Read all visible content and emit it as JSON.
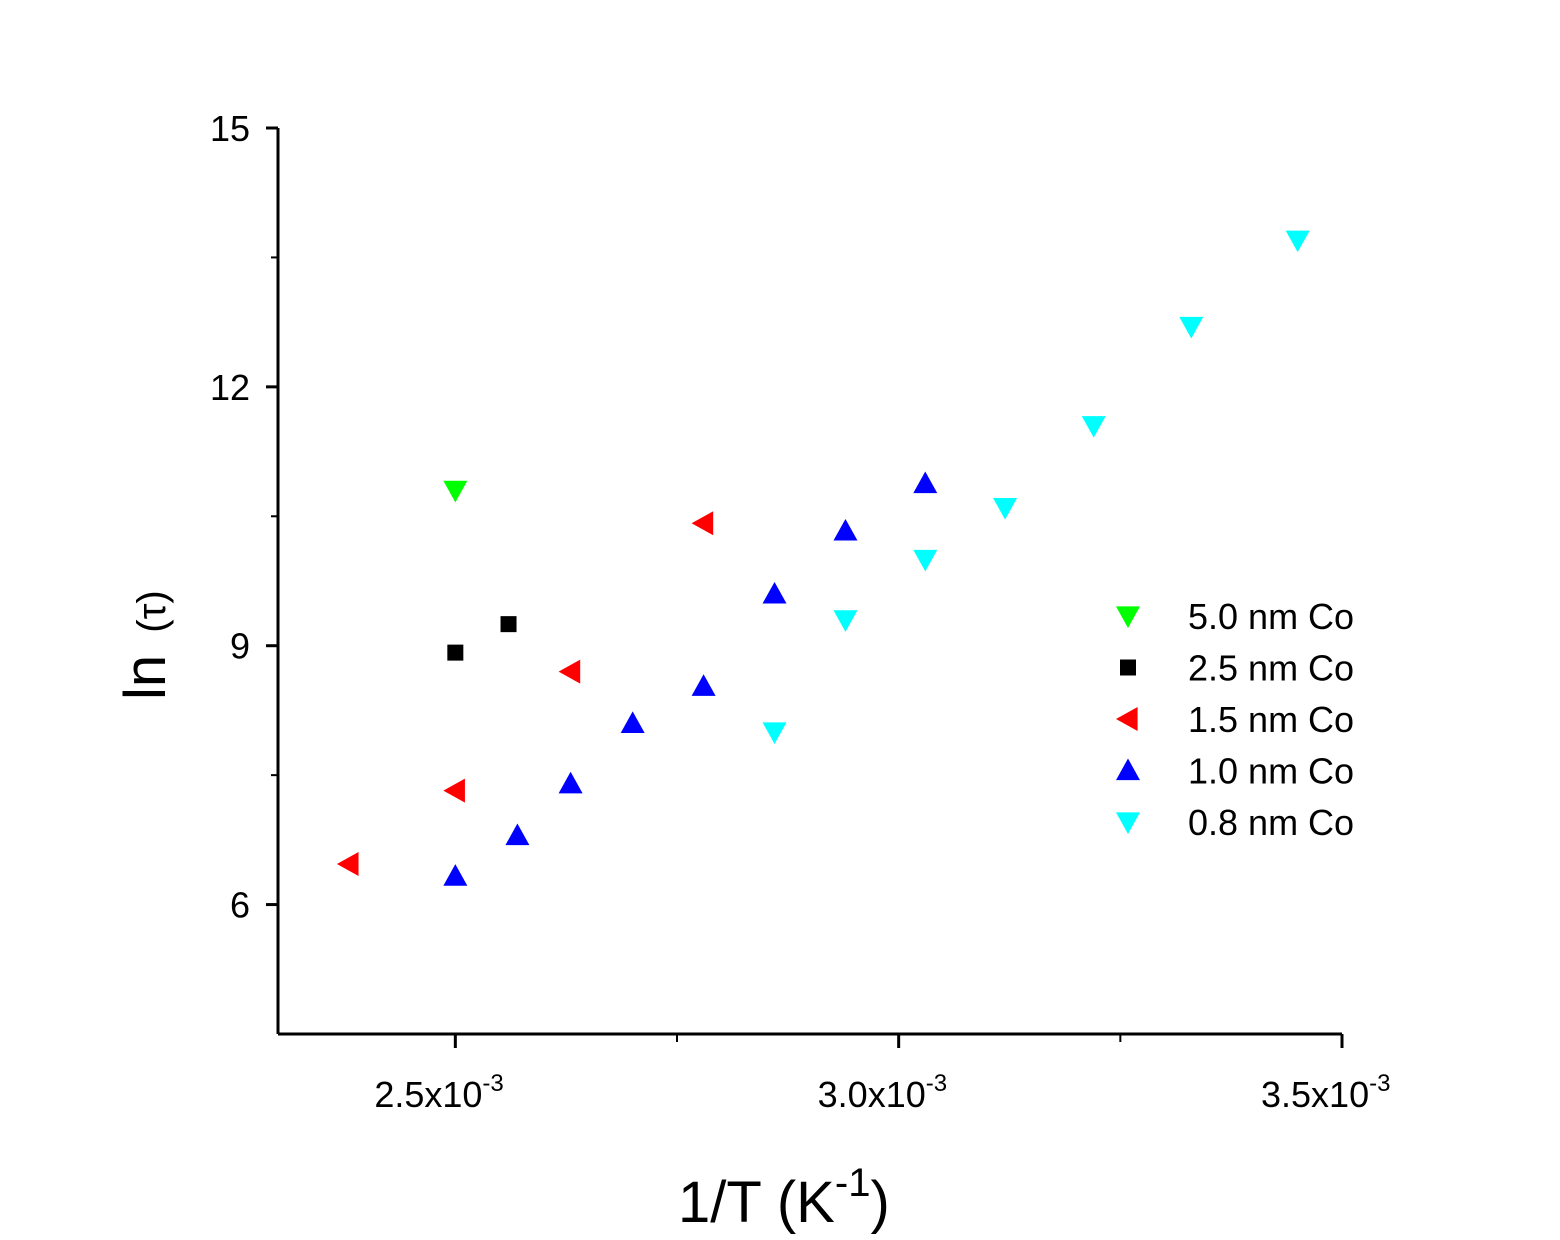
{
  "chart_data": {
    "type": "scatter",
    "title": "",
    "xlabel": {
      "base": "1/T (K",
      "sup": "-1",
      "close": ")"
    },
    "ylabel": {
      "prefix": "ln",
      "symbol": "(τ)"
    },
    "xlim": [
      0.0023,
      0.0035
    ],
    "ylim": [
      4.5,
      15
    ],
    "x_ticks": [
      {
        "value": 0.0025,
        "mantissa": "2.5x10",
        "exp": "-3"
      },
      {
        "value": 0.003,
        "mantissa": "3.0x10",
        "exp": "-3"
      },
      {
        "value": 0.0035,
        "mantissa": "3.5x10",
        "exp": "-3"
      }
    ],
    "x_minor_ticks": [
      0.00275,
      0.00325
    ],
    "y_ticks": [
      {
        "value": 6,
        "label": "6"
      },
      {
        "value": 9,
        "label": "9"
      },
      {
        "value": 12,
        "label": "12"
      },
      {
        "value": 15,
        "label": "15"
      }
    ],
    "y_minor_ticks": [
      7.5,
      10.5,
      13.5
    ],
    "legend_position": "right",
    "series": [
      {
        "name": "5.0 nm Co",
        "color": "#00ff00",
        "marker": "triangle-down",
        "points": [
          [
            0.0025,
            10.8
          ]
        ]
      },
      {
        "name": "2.5 nm Co",
        "color": "#000000",
        "marker": "square",
        "points": [
          [
            0.0025,
            8.92
          ],
          [
            0.00256,
            9.25
          ]
        ]
      },
      {
        "name": "1.5 nm Co",
        "color": "#ff0000",
        "marker": "triangle-left",
        "points": [
          [
            0.00238,
            6.47
          ],
          [
            0.0025,
            7.32
          ],
          [
            0.00263,
            8.7
          ],
          [
            0.00278,
            10.42
          ]
        ]
      },
      {
        "name": "1.0 nm Co",
        "color": "#0000ff",
        "marker": "triangle-up",
        "points": [
          [
            0.0025,
            6.33
          ],
          [
            0.00257,
            6.8
          ],
          [
            0.00263,
            7.4
          ],
          [
            0.0027,
            8.1
          ],
          [
            0.00278,
            8.53
          ],
          [
            0.00286,
            9.6
          ],
          [
            0.00294,
            10.33
          ],
          [
            0.00303,
            10.88
          ]
        ]
      },
      {
        "name": "0.8 nm Co",
        "color": "#00ffff",
        "marker": "triangle-down",
        "points": [
          [
            0.00286,
            8.0
          ],
          [
            0.00294,
            9.3
          ],
          [
            0.00303,
            10.0
          ],
          [
            0.00312,
            10.6
          ],
          [
            0.00322,
            11.55
          ],
          [
            0.00333,
            12.7
          ],
          [
            0.00345,
            13.7
          ]
        ]
      }
    ]
  }
}
